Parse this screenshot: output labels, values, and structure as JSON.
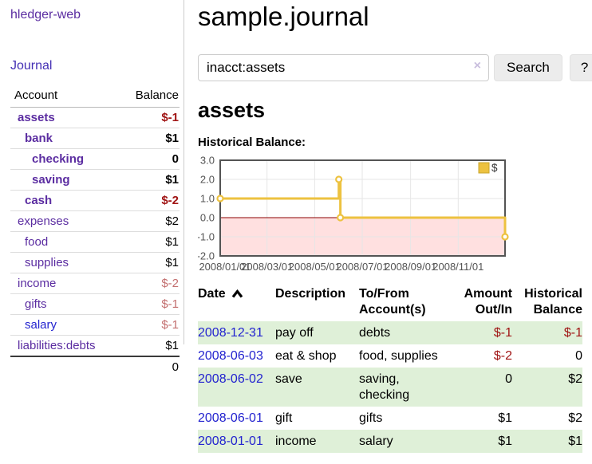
{
  "app": {
    "brand": "hledger-web"
  },
  "sidebar": {
    "journal_link": "Journal",
    "accounts_table": {
      "headers": [
        "Account",
        "Balance"
      ],
      "rows": [
        {
          "name": "assets",
          "indent": 0,
          "bold": true,
          "link_color": "purple",
          "balance": "$-1",
          "balance_tone": "strong-negative"
        },
        {
          "name": "bank",
          "indent": 1,
          "bold": true,
          "link_color": "purple",
          "balance": "$1",
          "balance_tone": "none"
        },
        {
          "name": "checking",
          "indent": 2,
          "bold": true,
          "link_color": "purple",
          "balance": "0",
          "balance_tone": "none"
        },
        {
          "name": "saving",
          "indent": 2,
          "bold": true,
          "link_color": "purple",
          "balance": "$1",
          "balance_tone": "none"
        },
        {
          "name": "cash",
          "indent": 1,
          "bold": true,
          "link_color": "purple",
          "balance": "$-2",
          "balance_tone": "strong-negative"
        },
        {
          "name": "expenses",
          "indent": 0,
          "bold": false,
          "link_color": "purple",
          "balance": "$2",
          "balance_tone": "none"
        },
        {
          "name": "food",
          "indent": 1,
          "bold": false,
          "link_color": "purple",
          "balance": "$1",
          "balance_tone": "none"
        },
        {
          "name": "supplies",
          "indent": 1,
          "bold": false,
          "link_color": "purple",
          "balance": "$1",
          "balance_tone": "none"
        },
        {
          "name": "income",
          "indent": 0,
          "bold": false,
          "link_color": "purple",
          "balance": "$-2",
          "balance_tone": "faded-negative"
        },
        {
          "name": "gifts",
          "indent": 1,
          "bold": false,
          "link_color": "purple",
          "balance": "$-1",
          "balance_tone": "faded-negative"
        },
        {
          "name": "salary",
          "indent": 1,
          "bold": false,
          "link_color": "blue",
          "balance": "$-1",
          "balance_tone": "faded-negative"
        },
        {
          "name": "liabilities:debts",
          "indent": 0,
          "bold": false,
          "link_color": "purple",
          "balance": "$1",
          "balance_tone": "none"
        }
      ],
      "total": "0"
    }
  },
  "header": {
    "title": "sample.journal"
  },
  "search": {
    "value": "inacct:assets",
    "clear_icon": "×",
    "button_label": "Search",
    "help_label": "?"
  },
  "account_page": {
    "heading": "assets",
    "chart_label": "Historical Balance:"
  },
  "chart_data": {
    "type": "line",
    "title": "Historical Balance",
    "series": [
      {
        "name": "$",
        "step": true,
        "points": [
          [
            "2008/01/01",
            1.0
          ],
          [
            "2008/06/01",
            2.0
          ],
          [
            "2008/06/03",
            0.0
          ],
          [
            "2008/12/31",
            -1.0
          ]
        ]
      }
    ],
    "xlim": [
      "2008/01/01",
      "2008/12/31"
    ],
    "ylim": [
      -2.0,
      3.0
    ],
    "y_ticks": [
      3.0,
      2.0,
      1.0,
      0.0,
      -1.0,
      -2.0
    ],
    "x_ticks": [
      "2008/01/01",
      "2008/03/01",
      "2008/05/01",
      "2008/07/01",
      "2008/09/01",
      "2008/11/01"
    ],
    "grid": true,
    "legend_position": "top-right",
    "negative_region_shaded": true,
    "line_color": "#edc240",
    "marker_fill": "#ffffff",
    "negative_fill": "rgba(255,0,0,0.12)",
    "zero_line_color": "#8b0000",
    "border_color": "#545454",
    "grid_color": "#e6e6e6",
    "tick_label_color": "#545454"
  },
  "register_table": {
    "sort": {
      "column": "Date",
      "direction": "ascending"
    },
    "headers": [
      "Date",
      "Description",
      "To/From Account(s)",
      "Amount Out/In",
      "Historical Balance"
    ],
    "rows": [
      {
        "date": "2008-12-31",
        "description": "pay off",
        "accounts": "debts",
        "amount": "$-1",
        "amount_negative": true,
        "balance": "$-1",
        "balance_negative": true
      },
      {
        "date": "2008-06-03",
        "description": "eat & shop",
        "accounts": "food, supplies",
        "amount": "$-2",
        "amount_negative": true,
        "balance": "0",
        "balance_negative": false
      },
      {
        "date": "2008-06-02",
        "description": "save",
        "accounts": "saving, checking",
        "amount": "0",
        "amount_negative": false,
        "balance": "$2",
        "balance_negative": false
      },
      {
        "date": "2008-06-01",
        "description": "gift",
        "accounts": "gifts",
        "amount": "$1",
        "amount_negative": false,
        "balance": "$2",
        "balance_negative": false
      },
      {
        "date": "2008-01-01",
        "description": "income",
        "accounts": "salary",
        "amount": "$1",
        "amount_negative": false,
        "balance": "$1",
        "balance_negative": false
      }
    ]
  },
  "colors": {
    "link_purple": "#5b2da1",
    "journal_purple": "#4430b4",
    "link_blue": "#2323cf",
    "strong_negative": "#a01414",
    "faded_negative": "#c36f6f",
    "row_stripe_green": "#dff0d8",
    "chart_line": "#edc240",
    "button_bg": "#ececec"
  }
}
